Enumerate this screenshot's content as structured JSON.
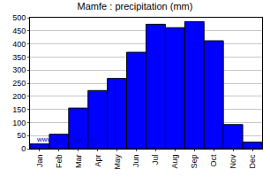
{
  "chart_data": {
    "type": "bar",
    "title": "Mamfe : precipitation (mm)",
    "categories": [
      "Jan",
      "Feb",
      "Mar",
      "Apr",
      "May",
      "Jun",
      "Jul",
      "Aug",
      "Sep",
      "Oct",
      "Nov",
      "Dec"
    ],
    "values": [
      18,
      55,
      155,
      222,
      268,
      368,
      475,
      462,
      485,
      412,
      92,
      25
    ],
    "color": "#0000ff",
    "ylim": [
      0,
      500
    ],
    "yticks": [
      0,
      50,
      100,
      150,
      200,
      250,
      300,
      350,
      400,
      450,
      500
    ],
    "grid": true,
    "annotations": [
      "www.allmetsat.com"
    ]
  }
}
